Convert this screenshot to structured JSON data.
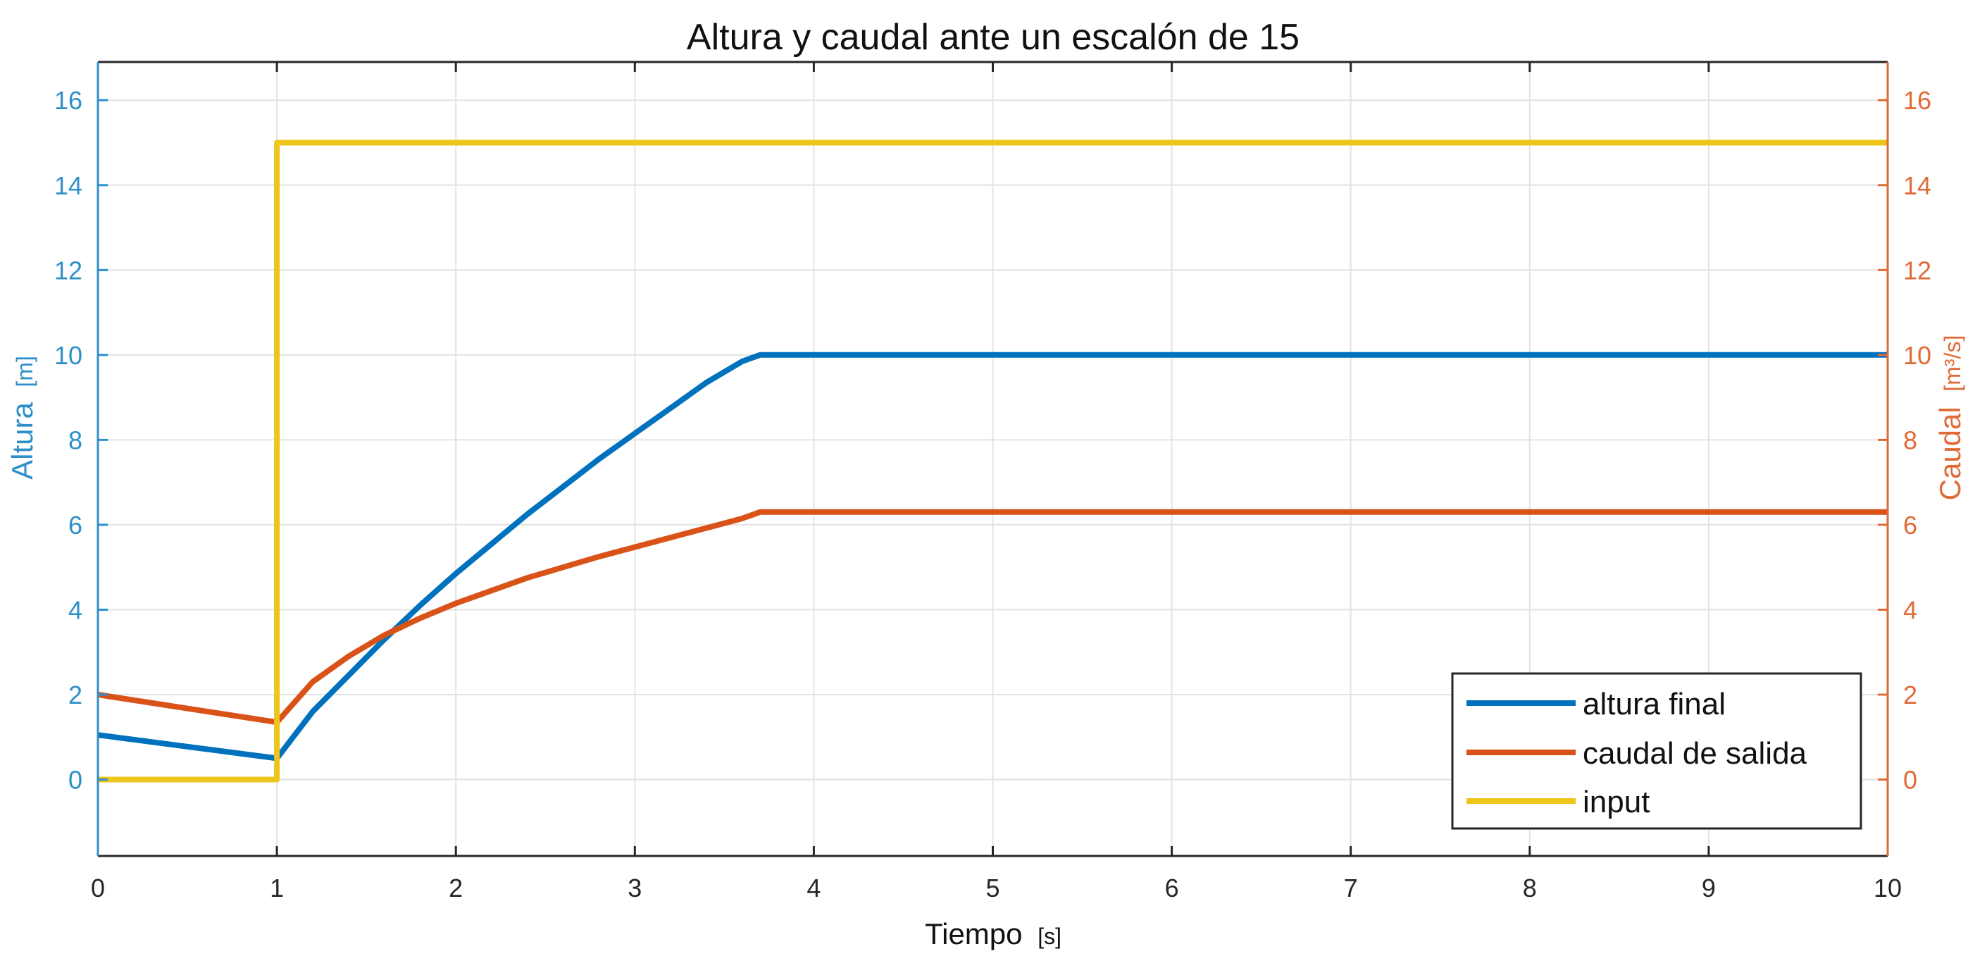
{
  "chart_data": {
    "type": "line",
    "title": "Altura y caudal ante un escalón de 15",
    "xlabel": "Tiempo",
    "xlabel_unit": "[s]",
    "ylabel_left": "Altura",
    "ylabel_left_unit": "[m]",
    "ylabel_right": "Caudal",
    "ylabel_right_unit": "[m³/s]",
    "xlim": [
      0,
      10
    ],
    "ylim_left": [
      -1.8,
      16.9
    ],
    "ylim_right": [
      -1.8,
      16.9
    ],
    "x_ticks": [
      "0",
      "1",
      "2",
      "3",
      "4",
      "5",
      "6",
      "7",
      "8",
      "9",
      "10"
    ],
    "y_ticks_left": [
      "0",
      "2",
      "4",
      "6",
      "8",
      "10",
      "12",
      "14",
      "16"
    ],
    "y_ticks_right": [
      "0",
      "2",
      "4",
      "6",
      "8",
      "10",
      "12",
      "14",
      "16"
    ],
    "grid": true,
    "legend_position": "bottom-right",
    "colors": {
      "axis_left": "#2f8fc9",
      "axis_right": "#e06a35",
      "grid": "#e3e3e3",
      "box": "#262626"
    },
    "series": [
      {
        "name": "altura final",
        "color": "#0072bd",
        "axis": "left",
        "x": [
          0,
          1,
          1.2,
          1.4,
          1.6,
          1.8,
          2.0,
          2.2,
          2.4,
          2.6,
          2.8,
          3.0,
          3.2,
          3.4,
          3.6,
          3.7,
          3.8,
          10
        ],
        "y": [
          1.05,
          0.5,
          1.6,
          2.45,
          3.3,
          4.1,
          4.85,
          5.55,
          6.25,
          6.9,
          7.55,
          8.15,
          8.75,
          9.35,
          9.85,
          10.0,
          10.0,
          10.0
        ]
      },
      {
        "name": "caudal de salida",
        "color": "#d95319",
        "axis": "right",
        "x": [
          0,
          1,
          1.2,
          1.4,
          1.6,
          1.8,
          2.0,
          2.4,
          2.8,
          3.2,
          3.6,
          3.7,
          3.8,
          10
        ],
        "y": [
          2.0,
          1.35,
          2.3,
          2.9,
          3.4,
          3.8,
          4.15,
          4.75,
          5.25,
          5.7,
          6.15,
          6.3,
          6.3,
          6.3
        ]
      },
      {
        "name": "input",
        "color": "#edc51b",
        "axis": "left",
        "x": [
          0,
          1,
          1,
          10
        ],
        "y": [
          0,
          0,
          15,
          15
        ]
      }
    ]
  }
}
